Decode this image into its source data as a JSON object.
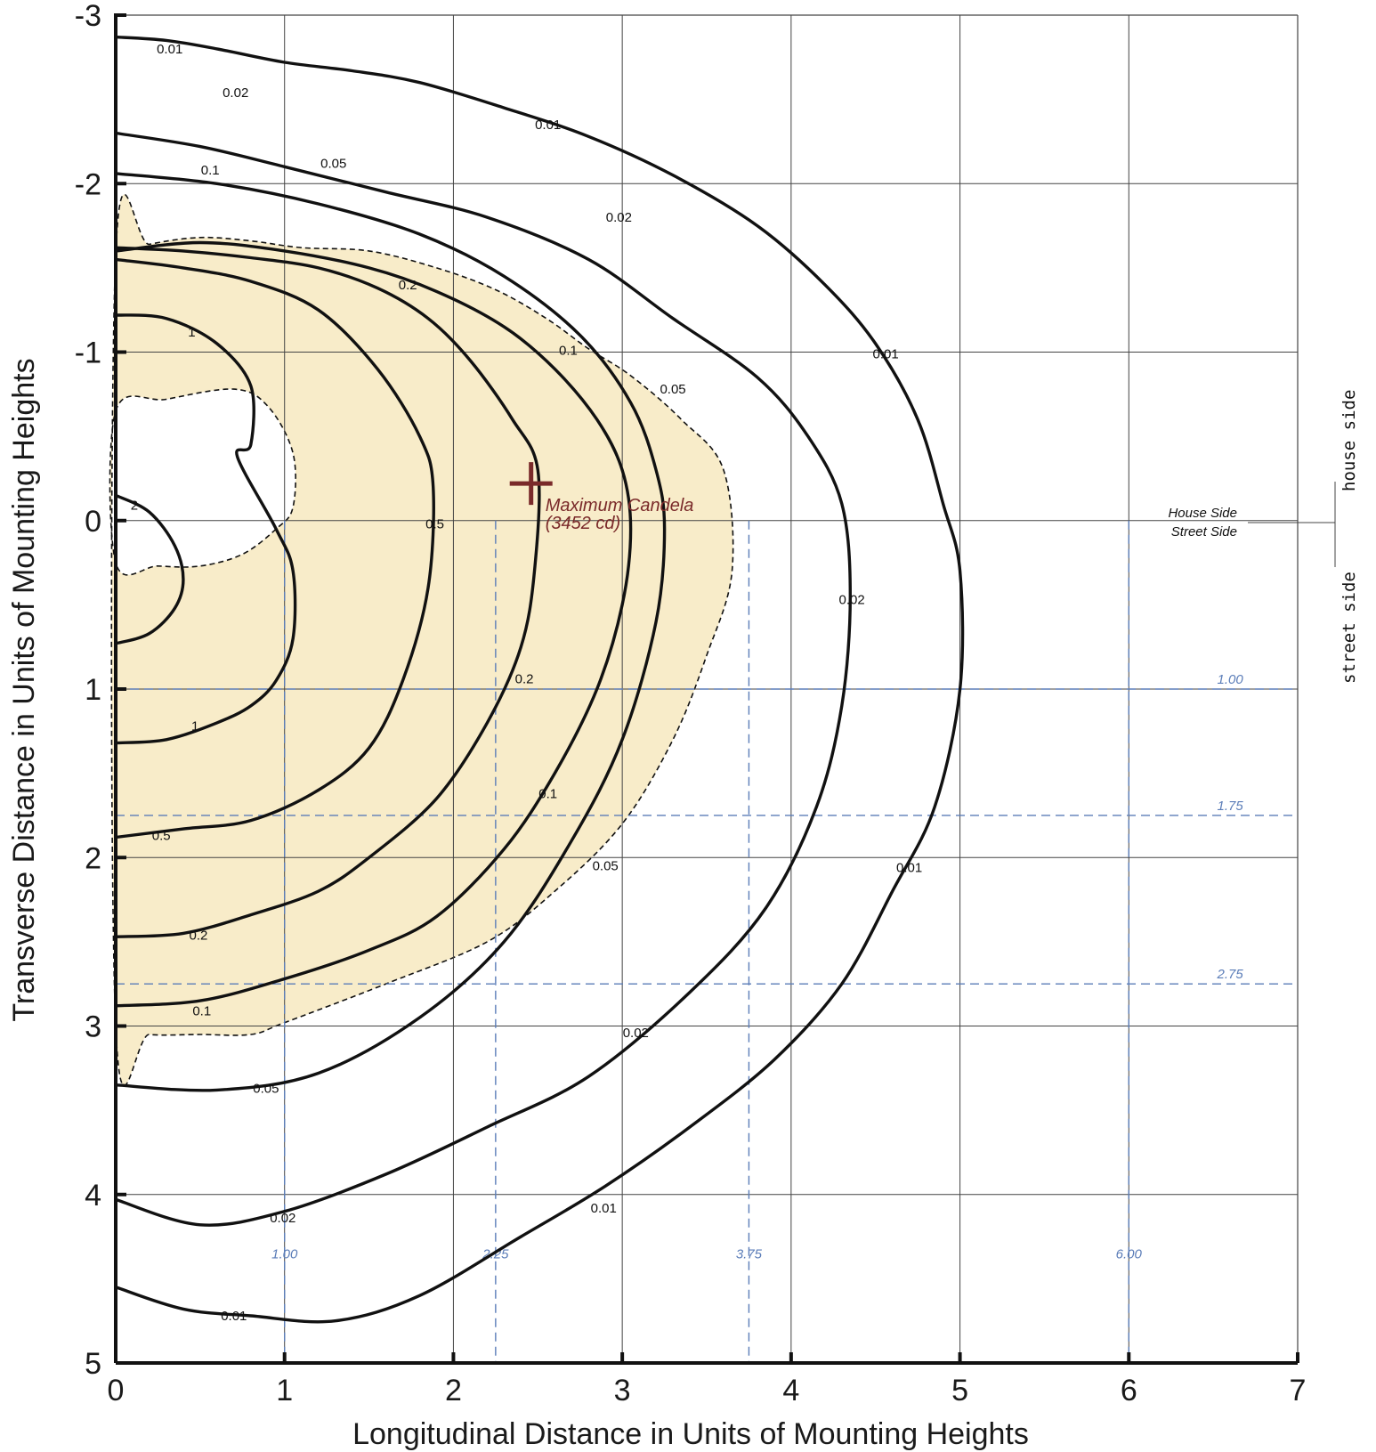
{
  "chart_data": {
    "type": "contour",
    "xlabel": "Longitudinal Distance in Units of Mounting Heights",
    "ylabel": "Transverse Distance in Units of Mounting Heights",
    "xlim": [
      0,
      7
    ],
    "ylim": [
      -3,
      5
    ],
    "y_inverted": true,
    "x_ticks": [
      "0",
      "1",
      "2",
      "3",
      "4",
      "5",
      "6",
      "7"
    ],
    "y_ticks": [
      "-3",
      "-2",
      "-1",
      "0",
      "1",
      "2",
      "3",
      "4",
      "5"
    ],
    "grid": true,
    "colors": {
      "contour": "#111111",
      "fill": "#f8ecc9",
      "reference_lines": "#5b7db8",
      "max_marker": "#7a2a2a"
    },
    "reference_lines": {
      "vertical": [
        {
          "x": 1.0,
          "label": "1.00"
        },
        {
          "x": 2.25,
          "label": "2.25"
        },
        {
          "x": 3.75,
          "label": "3.75"
        },
        {
          "x": 6.0,
          "label": "6.00"
        }
      ],
      "horizontal": [
        {
          "y": 1.0,
          "label": "1.00"
        },
        {
          "y": 1.75,
          "label": "1.75"
        },
        {
          "y": 2.75,
          "label": "2.75"
        }
      ]
    },
    "maximum": {
      "x": 2.46,
      "y": -0.22,
      "label_line1": "Maximum Candela",
      "label_line2": "(3452 cd)"
    },
    "side_labels": {
      "house_side": "House Side",
      "street_side": "Street Side",
      "house_side_vertical": "house side",
      "street_side_vertical": "street side"
    },
    "half_max_region": {
      "style": "dashed",
      "outer": [
        [
          0,
          -1.58
        ],
        [
          0.2,
          -1.64
        ],
        [
          0.5,
          -1.68
        ],
        [
          0.8,
          -1.66
        ],
        [
          1.1,
          -1.62
        ],
        [
          1.5,
          -1.6
        ],
        [
          1.9,
          -1.5
        ],
        [
          2.25,
          -1.37
        ],
        [
          2.55,
          -1.2
        ],
        [
          2.8,
          -1.02
        ],
        [
          3.05,
          -0.86
        ],
        [
          3.35,
          -0.6
        ],
        [
          3.6,
          -0.3
        ],
        [
          3.65,
          0.3
        ],
        [
          3.5,
          0.8
        ],
        [
          3.3,
          1.3
        ],
        [
          3.0,
          1.8
        ],
        [
          2.6,
          2.2
        ],
        [
          2.2,
          2.5
        ],
        [
          1.6,
          2.75
        ],
        [
          1.0,
          2.98
        ],
        [
          0.8,
          3.05
        ],
        [
          0.5,
          3.05
        ],
        [
          0.2,
          3.05
        ],
        [
          0,
          3.0
        ]
      ],
      "hole": [
        [
          0,
          -0.65
        ],
        [
          0.3,
          -0.72
        ],
        [
          0.7,
          -0.78
        ],
        [
          0.9,
          -0.68
        ],
        [
          1.05,
          -0.4
        ],
        [
          1.05,
          -0.08
        ],
        [
          0.95,
          0.05
        ],
        [
          0.75,
          0.2
        ],
        [
          0.5,
          0.27
        ],
        [
          0.25,
          0.27
        ],
        [
          0,
          0.25
        ]
      ]
    },
    "contours": [
      {
        "level": "2",
        "label_at": [
          0.1,
          -0.09
        ],
        "points": [
          [
            0,
            -0.15
          ],
          [
            0.2,
            -0.05
          ],
          [
            0.35,
            0.15
          ],
          [
            0.4,
            0.35
          ],
          [
            0.35,
            0.52
          ],
          [
            0.2,
            0.67
          ],
          [
            0,
            0.73
          ]
        ]
      },
      {
        "level": "1",
        "label_at": [
          0.45,
          -1.13
        ],
        "points": [
          [
            0,
            -1.22
          ],
          [
            0.3,
            -1.2
          ],
          [
            0.6,
            -1.05
          ],
          [
            0.8,
            -0.8
          ],
          [
            0.8,
            -0.45
          ],
          [
            0.72,
            -0.38
          ],
          [
            0.95,
            0.05
          ],
          [
            1.05,
            0.3
          ],
          [
            1.05,
            0.7
          ],
          [
            0.95,
            0.95
          ],
          [
            0.8,
            1.1
          ],
          [
            0.6,
            1.2
          ],
          [
            0.3,
            1.3
          ],
          [
            0,
            1.32
          ]
        ]
      },
      {
        "level": "0.5",
        "label_at": [
          1.89,
          0.02
        ],
        "points": [
          [
            0,
            -1.55
          ],
          [
            0.4,
            -1.5
          ],
          [
            0.8,
            -1.42
          ],
          [
            1.2,
            -1.25
          ],
          [
            1.55,
            -0.9
          ],
          [
            1.8,
            -0.5
          ],
          [
            1.88,
            -0.2
          ],
          [
            1.85,
            0.4
          ],
          [
            1.7,
            0.95
          ],
          [
            1.5,
            1.35
          ],
          [
            1.2,
            1.6
          ],
          [
            0.8,
            1.78
          ],
          [
            0.4,
            1.83
          ],
          [
            0,
            1.88
          ]
        ]
      },
      {
        "level": "0.2",
        "label_at": [
          2.42,
          0.94
        ],
        "points": [
          [
            0,
            -1.62
          ],
          [
            0.4,
            -1.6
          ],
          [
            0.8,
            -1.56
          ],
          [
            1.2,
            -1.5
          ],
          [
            1.55,
            -1.38
          ],
          [
            1.85,
            -1.2
          ],
          [
            2.1,
            -0.95
          ],
          [
            2.35,
            -0.6
          ],
          [
            2.5,
            -0.3
          ],
          [
            2.48,
            0.3
          ],
          [
            2.4,
            0.75
          ],
          [
            2.2,
            1.2
          ],
          [
            1.9,
            1.65
          ],
          [
            1.5,
            2.0
          ],
          [
            1.2,
            2.2
          ],
          [
            0.8,
            2.34
          ],
          [
            0.4,
            2.45
          ],
          [
            0,
            2.47
          ]
        ]
      },
      {
        "level": "0.1",
        "label_at": [
          2.56,
          1.62
        ],
        "points": [
          [
            0,
            -1.6
          ],
          [
            0.5,
            -1.65
          ],
          [
            1.0,
            -1.6
          ],
          [
            1.5,
            -1.5
          ],
          [
            1.9,
            -1.36
          ],
          [
            2.3,
            -1.15
          ],
          [
            2.6,
            -0.9
          ],
          [
            2.85,
            -0.6
          ],
          [
            3.0,
            -0.3
          ],
          [
            3.05,
            0.05
          ],
          [
            3.0,
            0.5
          ],
          [
            2.85,
            1.0
          ],
          [
            2.6,
            1.5
          ],
          [
            2.3,
            1.95
          ],
          [
            1.9,
            2.35
          ],
          [
            1.5,
            2.55
          ],
          [
            1.0,
            2.72
          ],
          [
            0.5,
            2.85
          ],
          [
            0,
            2.88
          ]
        ]
      },
      {
        "level": "0.05",
        "label_at": [
          2.89,
          2.06
        ],
        "points": [
          [
            0,
            -2.06
          ],
          [
            0.6,
            -2.0
          ],
          [
            1.2,
            -1.88
          ],
          [
            1.8,
            -1.7
          ],
          [
            2.3,
            -1.45
          ],
          [
            2.75,
            -1.1
          ],
          [
            3.05,
            -0.7
          ],
          [
            3.2,
            -0.3
          ],
          [
            3.25,
            0.05
          ],
          [
            3.2,
            0.6
          ],
          [
            3.0,
            1.3
          ],
          [
            2.7,
            1.9
          ],
          [
            2.3,
            2.5
          ],
          [
            1.8,
            2.95
          ],
          [
            1.2,
            3.28
          ],
          [
            0.6,
            3.38
          ],
          [
            0,
            3.35
          ]
        ]
      },
      {
        "level": "0.02",
        "label_at": [
          4.5,
          0.47
        ],
        "points": [
          [
            0,
            -2.3
          ],
          [
            0.5,
            -2.22
          ],
          [
            1.0,
            -2.1
          ],
          [
            1.6,
            -1.95
          ],
          [
            2.2,
            -1.8
          ],
          [
            2.8,
            -1.55
          ],
          [
            3.3,
            -1.2
          ],
          [
            3.8,
            -0.85
          ],
          [
            4.1,
            -0.5
          ],
          [
            4.3,
            -0.1
          ],
          [
            4.35,
            0.45
          ],
          [
            4.3,
            1.1
          ],
          [
            4.15,
            1.7
          ],
          [
            3.85,
            2.3
          ],
          [
            3.4,
            2.8
          ],
          [
            2.8,
            3.3
          ],
          [
            2.2,
            3.6
          ],
          [
            1.6,
            3.88
          ],
          [
            1.0,
            4.1
          ],
          [
            0.5,
            4.18
          ],
          [
            0,
            4.03
          ]
        ]
      },
      {
        "level": "0.01",
        "label_at": [
          4.65,
          -0.98
        ],
        "points": [
          [
            0,
            -2.87
          ],
          [
            0.3,
            -2.85
          ],
          [
            0.6,
            -2.8
          ],
          [
            1.0,
            -2.72
          ],
          [
            1.4,
            -2.67
          ],
          [
            1.8,
            -2.6
          ],
          [
            2.3,
            -2.45
          ],
          [
            2.8,
            -2.28
          ],
          [
            3.3,
            -2.05
          ],
          [
            3.8,
            -1.75
          ],
          [
            4.2,
            -1.4
          ],
          [
            4.5,
            -1.05
          ],
          [
            4.75,
            -0.6
          ],
          [
            4.9,
            -0.1
          ],
          [
            5.0,
            0.3
          ],
          [
            5.0,
            1.0
          ],
          [
            4.85,
            1.7
          ],
          [
            4.6,
            2.2
          ],
          [
            4.3,
            2.75
          ],
          [
            3.9,
            3.2
          ],
          [
            3.4,
            3.6
          ],
          [
            2.9,
            3.95
          ],
          [
            2.4,
            4.25
          ],
          [
            1.8,
            4.6
          ],
          [
            1.3,
            4.75
          ],
          [
            0.8,
            4.72
          ],
          [
            0.4,
            4.68
          ],
          [
            0,
            4.55
          ]
        ]
      }
    ],
    "contour_label_positions": [
      {
        "text": "0.01",
        "x": 0.32,
        "y": -2.8
      },
      {
        "text": "0.02",
        "x": 0.71,
        "y": -2.54
      },
      {
        "text": "0.1",
        "x": 0.56,
        "y": -2.08
      },
      {
        "text": "0.05",
        "x": 1.29,
        "y": -2.12
      },
      {
        "text": "0.01",
        "x": 2.56,
        "y": -2.35
      },
      {
        "text": "0.02",
        "x": 2.98,
        "y": -1.8
      },
      {
        "text": "0.2",
        "x": 1.73,
        "y": -1.4
      },
      {
        "text": "0.1",
        "x": 2.68,
        "y": -1.01
      },
      {
        "text": "0.05",
        "x": 3.3,
        "y": -0.78
      },
      {
        "text": "0.01",
        "x": 4.56,
        "y": -0.99
      },
      {
        "text": "1",
        "x": 0.45,
        "y": -1.12
      },
      {
        "text": "2",
        "x": 0.11,
        "y": -0.09
      },
      {
        "text": "0.5",
        "x": 1.89,
        "y": 0.02
      },
      {
        "text": "0.02",
        "x": 4.36,
        "y": 0.47
      },
      {
        "text": "0.2",
        "x": 2.42,
        "y": 0.94
      },
      {
        "text": "1",
        "x": 0.47,
        "y": 1.22
      },
      {
        "text": "0.1",
        "x": 2.56,
        "y": 1.62
      },
      {
        "text": "0.5",
        "x": 0.27,
        "y": 1.87
      },
      {
        "text": "0.05",
        "x": 2.9,
        "y": 2.05
      },
      {
        "text": "0.01",
        "x": 4.7,
        "y": 2.06
      },
      {
        "text": "0.2",
        "x": 0.49,
        "y": 2.46
      },
      {
        "text": "0.1",
        "x": 0.51,
        "y": 2.91
      },
      {
        "text": "0.02",
        "x": 3.08,
        "y": 3.04
      },
      {
        "text": "0.05",
        "x": 0.89,
        "y": 3.37
      },
      {
        "text": "0.02",
        "x": 0.99,
        "y": 4.14
      },
      {
        "text": "0.01",
        "x": 2.89,
        "y": 4.08
      },
      {
        "text": "0.01",
        "x": 0.7,
        "y": 4.72
      }
    ]
  }
}
